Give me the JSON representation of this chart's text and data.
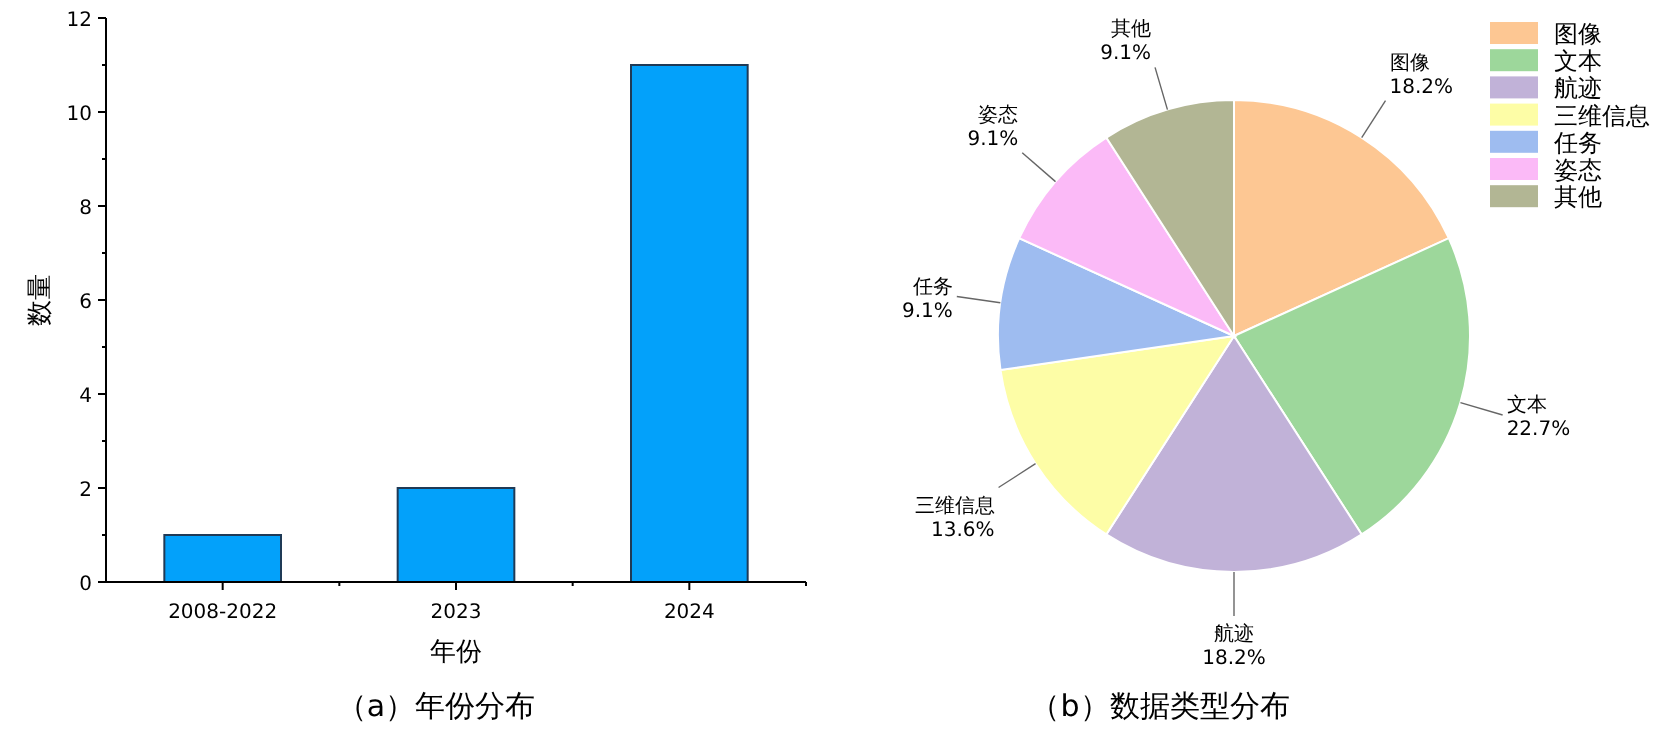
{
  "chart_data": [
    {
      "type": "bar",
      "title": "（a）年份分布",
      "xlabel": "年份",
      "ylabel": "数量",
      "categories": [
        "2008-2022",
        "2023",
        "2024"
      ],
      "values": [
        1,
        2,
        11
      ],
      "color": "#03a1fa",
      "ylim": [
        0,
        12
      ],
      "yticks": [
        0,
        2,
        4,
        6,
        8,
        10,
        12
      ],
      "grid": false
    },
    {
      "type": "pie",
      "title": "（b）数据类型分布",
      "categories": [
        "图像",
        "文本",
        "航迹",
        "三维信息",
        "任务",
        "姿态",
        "其他"
      ],
      "values": [
        18.2,
        22.7,
        18.2,
        13.6,
        9.1,
        9.1,
        9.1
      ],
      "colors": [
        "#fdc793",
        "#9dd79b",
        "#c1b2d8",
        "#fdfda6",
        "#9ebcf0",
        "#fbbaf7",
        "#b2b694"
      ],
      "value_labels": [
        "18.2%",
        "22.7%",
        "18.2%",
        "13.6%",
        "9.1%",
        "9.1%",
        "9.1%"
      ],
      "legend": "top right"
    }
  ]
}
